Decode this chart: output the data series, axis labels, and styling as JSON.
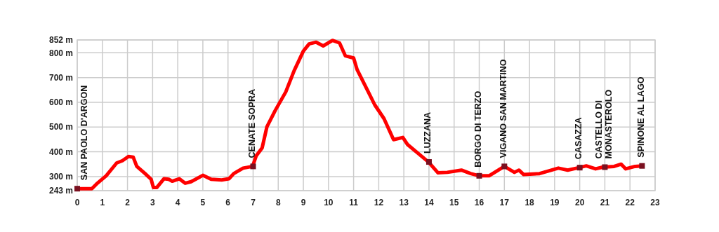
{
  "chart_data": {
    "type": "line",
    "x": [
      0,
      0.58,
      0.77,
      1.15,
      1.57,
      1.8,
      2.04,
      2.23,
      2.37,
      2.7,
      2.94,
      3.03,
      3.17,
      3.45,
      3.64,
      3.78,
      4.06,
      4.3,
      4.53,
      5.0,
      5.33,
      5.75,
      6.04,
      6.23,
      6.6,
      6.98,
      7.12,
      7.36,
      7.55,
      7.88,
      8.3,
      8.63,
      9.0,
      9.23,
      9.51,
      9.79,
      10.16,
      10.44,
      10.67,
      11.0,
      11.14,
      11.56,
      11.84,
      12.21,
      12.59,
      12.96,
      13.14,
      13.47,
      13.98,
      14.36,
      14.73,
      15.29,
      15.66,
      16.0,
      16.39,
      17.0,
      17.4,
      17.58,
      17.77,
      18.4,
      19.15,
      19.52,
      19.98,
      20.26,
      20.63,
      20.91,
      21.37,
      21.65,
      21.83,
      22.2,
      22.48
    ],
    "series": [
      {
        "color": "#ff0000",
        "values": [
          251,
          251,
          270,
          303,
          355,
          364,
          381,
          378,
          341,
          312,
          289,
          256,
          256,
          291,
          289,
          281,
          291,
          273,
          279,
          305,
          289,
          286,
          291,
          312,
          334,
          341,
          383,
          416,
          501,
          567,
          642,
          727,
          807,
          836,
          843,
          828,
          850,
          840,
          788,
          779,
          732,
          647,
          590,
          534,
          449,
          458,
          430,
          402,
          359,
          315,
          317,
          326,
          312,
          303,
          303,
          341,
          317,
          326,
          308,
          312,
          334,
          326,
          336,
          343,
          331,
          338,
          341,
          350,
          331,
          341,
          343
        ]
      }
    ],
    "xlim": [
      0,
      23
    ],
    "xticks": [
      0,
      1,
      2,
      3,
      4,
      5,
      6,
      7,
      8,
      9,
      10,
      11,
      12,
      13,
      14,
      15,
      16,
      17,
      18,
      19,
      20,
      21,
      22,
      23
    ],
    "ylim": [
      243,
      852
    ],
    "yticks": [
      {
        "value": 243,
        "label": "243 m"
      },
      {
        "value": 300,
        "label": "300 m"
      },
      {
        "value": 400,
        "label": "400 m"
      },
      {
        "value": 500,
        "label": "500 m"
      },
      {
        "value": 600,
        "label": "600 m"
      },
      {
        "value": 700,
        "label": "700 m"
      },
      {
        "value": 800,
        "label": "800 m"
      },
      {
        "value": 852,
        "label": "852 m"
      }
    ],
    "grid": true,
    "marker": "none",
    "line_style": "solid",
    "annotations": [
      {
        "text": "SAN PAOLO D'ARGON",
        "x": 0,
        "y": 251
      },
      {
        "text": "CENATE SOPRA",
        "x": 7,
        "y": 341
      },
      {
        "text": "LUZZANA",
        "x": 14,
        "y": 359
      },
      {
        "text": "BORGO DI TERZO",
        "x": 16,
        "y": 303
      },
      {
        "text": "VIGANO SAN MARTINO",
        "x": 17,
        "y": 341
      },
      {
        "text": "CASAZZA",
        "x": 20,
        "y": 336
      },
      {
        "text": "CASTELLO DI\nMONASTEROLO",
        "x": 21,
        "y": 338
      },
      {
        "text": "SPINONE AL LAGO",
        "x": 22.48,
        "y": 343
      }
    ]
  }
}
